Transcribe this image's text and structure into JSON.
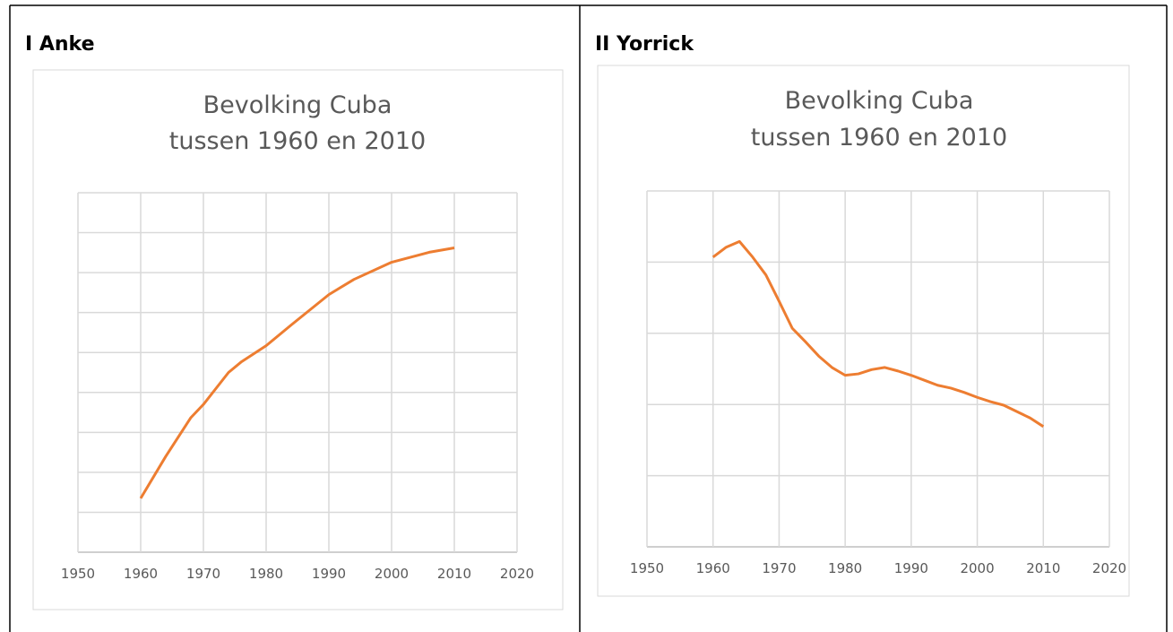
{
  "headings": [
    "I Anke",
    "II Yorrick"
  ],
  "chart_data": [
    {
      "type": "line",
      "title": "Bevolking Cuba",
      "subtitle": "tussen 1960 en 2010",
      "x": [
        1960,
        1964,
        1968,
        1970,
        1974,
        1976,
        1980,
        1984,
        1990,
        1994,
        2000,
        2006,
        2010
      ],
      "values": [
        1.35,
        2.4,
        3.37,
        3.7,
        4.5,
        4.76,
        5.17,
        5.69,
        6.45,
        6.83,
        7.26,
        7.51,
        7.62
      ],
      "color": "#ed7d31",
      "xlim": [
        1950,
        2020
      ],
      "xticks": [
        1950,
        1960,
        1970,
        1980,
        1990,
        2000,
        2010,
        2020
      ],
      "ylim": [
        0,
        9
      ],
      "yticks": [
        0,
        1,
        2,
        3,
        4,
        5,
        6,
        7,
        8,
        9
      ],
      "grid": true
    },
    {
      "type": "line",
      "title": "Bevolking Cuba",
      "subtitle": "tussen 1960 en 2010",
      "x": [
        1960,
        1962,
        1964,
        1966,
        1968,
        1970,
        1972,
        1974,
        1976,
        1978,
        1980,
        1982,
        1984,
        1986,
        1988,
        1990,
        1992,
        1994,
        1996,
        1998,
        2000,
        2002,
        2004,
        2006,
        2008,
        2010
      ],
      "values": [
        4.07,
        4.21,
        4.29,
        4.07,
        3.82,
        3.45,
        3.07,
        2.88,
        2.68,
        2.52,
        2.41,
        2.43,
        2.49,
        2.52,
        2.47,
        2.41,
        2.34,
        2.27,
        2.23,
        2.17,
        2.1,
        2.04,
        1.99,
        1.9,
        1.81,
        1.69
      ],
      "color": "#ed7d31",
      "xlim": [
        1950,
        2020
      ],
      "xticks": [
        1950,
        1960,
        1970,
        1980,
        1990,
        2000,
        2010,
        2020
      ],
      "ylim": [
        0,
        5
      ],
      "yticks": [
        0,
        1,
        2,
        3,
        4,
        5
      ],
      "grid": true
    }
  ]
}
